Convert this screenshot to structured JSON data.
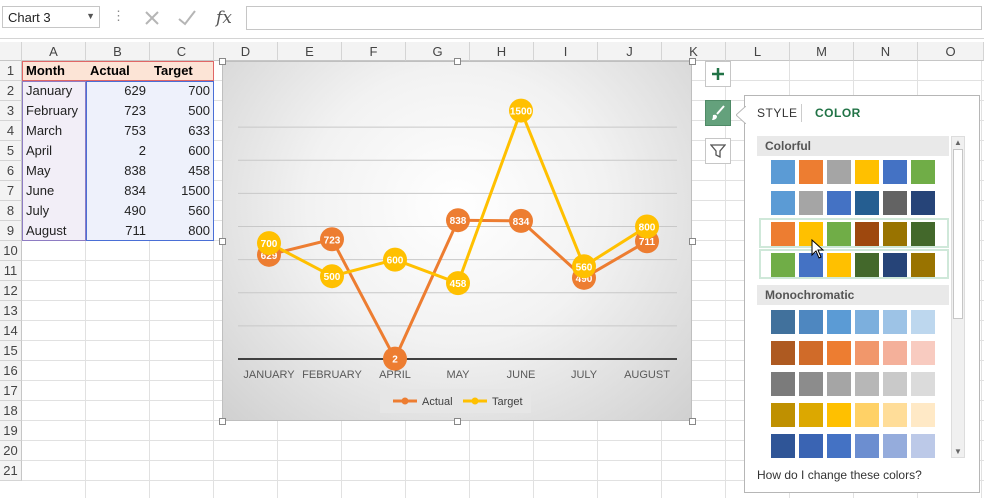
{
  "formula_bar": {
    "name_box": "Chart 3",
    "formula": ""
  },
  "columns": [
    "A",
    "B",
    "C",
    "D",
    "E",
    "F",
    "G",
    "H",
    "I",
    "J",
    "K",
    "L",
    "M",
    "N",
    "O"
  ],
  "rows": [
    "1",
    "2",
    "3",
    "4",
    "5",
    "6",
    "7",
    "8",
    "9",
    "10",
    "11",
    "12",
    "13",
    "14",
    "15",
    "16",
    "17",
    "18",
    "19",
    "20",
    "21"
  ],
  "table": {
    "headers": [
      "Month",
      "Actual",
      "Target"
    ],
    "rows": [
      [
        "January",
        "629",
        "700"
      ],
      [
        "February",
        "723",
        "500"
      ],
      [
        "March",
        "753",
        "633"
      ],
      [
        "April",
        "2",
        "600"
      ],
      [
        "May",
        "838",
        "458"
      ],
      [
        "June",
        "834",
        "1500"
      ],
      [
        "July",
        "490",
        "560"
      ],
      [
        "August",
        "711",
        "800"
      ]
    ]
  },
  "chart_data": {
    "type": "line",
    "categories": [
      "JANUARY",
      "FEBRUARY",
      "APRIL",
      "MAY",
      "JUNE",
      "JULY",
      "AUGUST"
    ],
    "series": [
      {
        "name": "Actual",
        "values": [
          629,
          723,
          2,
          838,
          834,
          490,
          711
        ],
        "color": "#ed7d31"
      },
      {
        "name": "Target",
        "values": [
          700,
          500,
          600,
          458,
          1500,
          560,
          800
        ],
        "color": "#ffc000"
      }
    ],
    "title": "",
    "xlabel": "",
    "ylabel": "",
    "ylim": [
      0,
      1600
    ],
    "grid": true,
    "legend": "bottom"
  },
  "pane": {
    "tab_style": "STYLE",
    "tab_color": "COLOR",
    "section_colorful": "Colorful",
    "section_mono": "Monochromatic",
    "help": "How do I change these colors?",
    "colorful_rows": [
      [
        "#5b9bd5",
        "#ed7d31",
        "#a5a5a5",
        "#ffc000",
        "#4472c4",
        "#70ad47"
      ],
      [
        "#5b9bd5",
        "#a5a5a5",
        "#4472c4",
        "#255e91",
        "#636363",
        "#264478"
      ],
      [
        "#ed7d31",
        "#ffc000",
        "#70ad47",
        "#9e480e",
        "#997300",
        "#43682b"
      ],
      [
        "#70ad47",
        "#4472c4",
        "#ffc000",
        "#43682b",
        "#264478",
        "#997300"
      ]
    ],
    "mono_rows": [
      [
        "#41719c",
        "#4e87c0",
        "#5b9bd5",
        "#7cafdd",
        "#9dc3e6",
        "#bdd7ee"
      ],
      [
        "#ae5a21",
        "#d06b29",
        "#ed7d31",
        "#f1976b",
        "#f4b09a",
        "#f8cbc0"
      ],
      [
        "#7b7b7b",
        "#8c8c8c",
        "#a5a5a5",
        "#b7b7b7",
        "#c9c9c9",
        "#dbdbdb"
      ],
      [
        "#bf9000",
        "#dca800",
        "#ffc000",
        "#ffd166",
        "#ffdd99",
        "#ffe9c6"
      ],
      [
        "#2f5597",
        "#3a64b3",
        "#4472c4",
        "#6c8ed0",
        "#95acdc",
        "#bcc9e8"
      ]
    ]
  }
}
